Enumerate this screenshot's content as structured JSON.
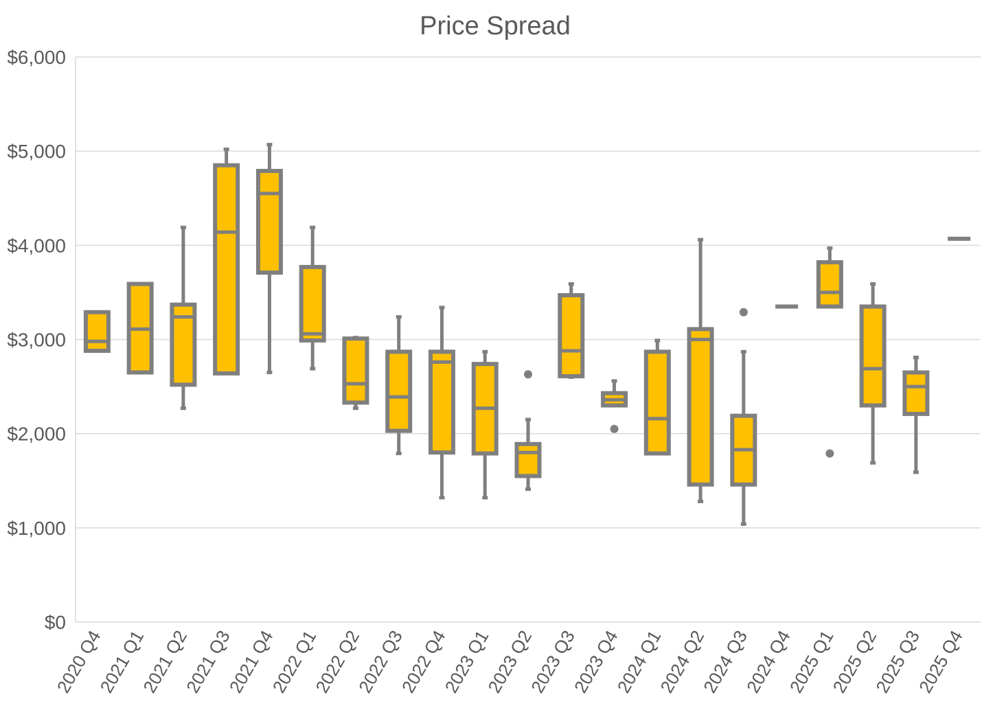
{
  "chart_data": {
    "type": "boxplot",
    "title": "Price Spread",
    "xlabel": "",
    "ylabel": "",
    "ylim": [
      0,
      6000
    ],
    "y_ticks": [
      "$0",
      "$1,000",
      "$2,000",
      "$3,000",
      "$4,000",
      "$5,000",
      "$6,000"
    ],
    "y_tick_values": [
      0,
      1000,
      2000,
      3000,
      4000,
      5000,
      6000
    ],
    "grid": true,
    "colors": {
      "box_fill": "#ffc000",
      "box_stroke": "#7f7f7f",
      "grid": "#d9d9d9",
      "text": "#595959"
    },
    "categories": [
      "2020 Q4",
      "2021 Q1",
      "2021 Q2",
      "2021 Q3",
      "2021 Q4",
      "2022 Q1",
      "2022 Q2",
      "2022 Q3",
      "2022 Q4",
      "2023 Q1",
      "2023 Q2",
      "2023 Q3",
      "2023 Q4",
      "2024 Q1",
      "2024 Q2",
      "2024 Q3",
      "2024 Q4",
      "2025 Q1",
      "2025 Q2",
      "2025 Q3",
      "2025 Q4"
    ],
    "boxes": [
      {
        "min": 2880,
        "q1": 2880,
        "median": 2980,
        "q3": 3290,
        "max": 3290,
        "outliers": []
      },
      {
        "min": 2650,
        "q1": 2650,
        "median": 3110,
        "q3": 3590,
        "max": 3590,
        "outliers": []
      },
      {
        "min": 2270,
        "q1": 2520,
        "median": 3240,
        "q3": 3370,
        "max": 4190,
        "outliers": []
      },
      {
        "min": 2640,
        "q1": 2640,
        "median": 4140,
        "q3": 4850,
        "max": 5020,
        "outliers": []
      },
      {
        "min": 2650,
        "q1": 3710,
        "median": 4550,
        "q3": 4790,
        "max": 5070,
        "outliers": []
      },
      {
        "min": 2690,
        "q1": 2990,
        "median": 3060,
        "q3": 3770,
        "max": 4190,
        "outliers": []
      },
      {
        "min": 2270,
        "q1": 2330,
        "median": 2530,
        "q3": 3010,
        "max": 3020,
        "outliers": []
      },
      {
        "min": 1790,
        "q1": 2030,
        "median": 2390,
        "q3": 2870,
        "max": 3240,
        "outliers": []
      },
      {
        "min": 1320,
        "q1": 1800,
        "median": 2760,
        "q3": 2870,
        "max": 3340,
        "outliers": []
      },
      {
        "min": 1320,
        "q1": 1790,
        "median": 2270,
        "q3": 2740,
        "max": 2870,
        "outliers": []
      },
      {
        "min": 1410,
        "q1": 1550,
        "median": 1800,
        "q3": 1890,
        "max": 2150,
        "outliers": [
          2630
        ]
      },
      {
        "min": 2600,
        "q1": 2610,
        "median": 2880,
        "q3": 3470,
        "max": 3590,
        "outliers": []
      },
      {
        "min": 2300,
        "q1": 2300,
        "median": 2360,
        "q3": 2430,
        "max": 2560,
        "outliers": [
          2050
        ]
      },
      {
        "min": 1790,
        "q1": 1790,
        "median": 2160,
        "q3": 2870,
        "max": 2990,
        "outliers": []
      },
      {
        "min": 1280,
        "q1": 1460,
        "median": 3000,
        "q3": 3110,
        "max": 4060,
        "outliers": []
      },
      {
        "min": 1040,
        "q1": 1460,
        "median": 1830,
        "q3": 2190,
        "max": 2870,
        "outliers": [
          3290
        ]
      },
      {
        "min": 3350,
        "q1": 3350,
        "median": 3350,
        "q3": 3350,
        "max": 3350,
        "outliers": []
      },
      {
        "min": 3350,
        "q1": 3350,
        "median": 3500,
        "q3": 3820,
        "max": 3970,
        "outliers": [
          1790
        ]
      },
      {
        "min": 1690,
        "q1": 2300,
        "median": 2690,
        "q3": 3350,
        "max": 3590,
        "outliers": []
      },
      {
        "min": 1590,
        "q1": 2210,
        "median": 2500,
        "q3": 2650,
        "max": 2810,
        "outliers": []
      },
      {
        "min": 4070,
        "q1": 4070,
        "median": 4070,
        "q3": 4070,
        "max": 4070,
        "outliers": []
      }
    ]
  }
}
